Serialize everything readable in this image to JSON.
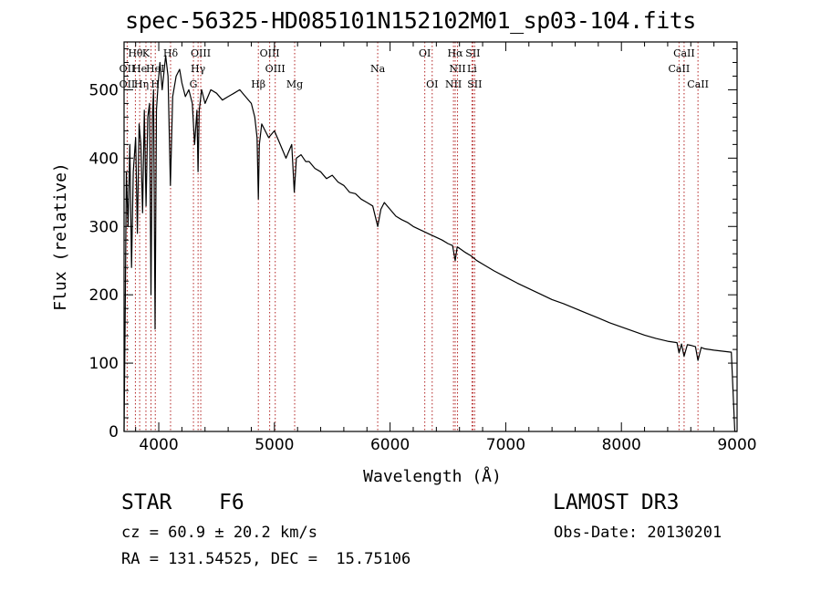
{
  "chart_data": {
    "type": "line",
    "title": "spec-56325-HD085101N152102M01_sp03-104.fits",
    "xlabel": "Wavelength (Å)",
    "ylabel": "Flux (relative)",
    "xlim": [
      3700,
      9000
    ],
    "ylim": [
      0,
      570
    ],
    "xticks": [
      4000,
      5000,
      6000,
      7000,
      8000,
      9000
    ],
    "yticks": [
      0,
      100,
      200,
      300,
      400,
      500
    ],
    "series": [
      {
        "name": "spectrum",
        "x": [
          3700,
          3710,
          3720,
          3735,
          3750,
          3765,
          3780,
          3800,
          3815,
          3830,
          3845,
          3860,
          3875,
          3890,
          3905,
          3920,
          3933,
          3945,
          3955,
          3968,
          3980,
          3995,
          4010,
          4030,
          4060,
          4080,
          4101,
          4120,
          4150,
          4180,
          4200,
          4230,
          4260,
          4290,
          4310,
          4330,
          4340,
          4350,
          4370,
          4400,
          4450,
          4500,
          4550,
          4600,
          4650,
          4700,
          4750,
          4800,
          4830,
          4850,
          4861,
          4870,
          4890,
          4920,
          4950,
          5000,
          5050,
          5100,
          5150,
          5172,
          5190,
          5230,
          5270,
          5300,
          5350,
          5400,
          5450,
          5500,
          5550,
          5600,
          5650,
          5700,
          5750,
          5800,
          5850,
          5893,
          5920,
          5950,
          6000,
          6050,
          6100,
          6150,
          6200,
          6250,
          6300,
          6350,
          6400,
          6450,
          6500,
          6540,
          6563,
          6580,
          6600,
          6650,
          6700,
          6750,
          6800,
          6900,
          7000,
          7100,
          7200,
          7300,
          7400,
          7500,
          7600,
          7700,
          7800,
          7900,
          8000,
          8100,
          8200,
          8300,
          8400,
          8480,
          8498,
          8520,
          8542,
          8570,
          8600,
          8640,
          8662,
          8690,
          8720,
          8760,
          8800,
          8850,
          8900,
          8950,
          8980,
          9000
        ],
        "y": [
          0,
          180,
          380,
          300,
          420,
          240,
          380,
          430,
          290,
          450,
          420,
          320,
          470,
          330,
          460,
          480,
          200,
          460,
          500,
          150,
          470,
          510,
          540,
          500,
          550,
          520,
          360,
          490,
          520,
          530,
          510,
          490,
          500,
          480,
          420,
          470,
          380,
          470,
          500,
          480,
          500,
          495,
          485,
          490,
          495,
          500,
          490,
          480,
          460,
          430,
          340,
          420,
          450,
          440,
          430,
          440,
          420,
          400,
          420,
          350,
          400,
          405,
          395,
          395,
          385,
          380,
          370,
          375,
          365,
          360,
          350,
          348,
          340,
          335,
          330,
          300,
          325,
          335,
          325,
          315,
          310,
          306,
          300,
          296,
          292,
          288,
          284,
          280,
          275,
          272,
          250,
          270,
          268,
          262,
          257,
          250,
          245,
          235,
          226,
          217,
          209,
          201,
          193,
          187,
          180,
          173,
          166,
          159,
          153,
          147,
          141,
          136,
          132,
          130,
          115,
          128,
          110,
          127,
          126,
          124,
          104,
          123,
          121,
          120,
          119,
          118,
          117,
          116,
          0,
          0
        ]
      }
    ],
    "line_labels_top": [
      {
        "wavelength": 3798,
        "label": "Hθ"
      },
      {
        "wavelength": 3889,
        "label": "K"
      },
      {
        "wavelength": 4102,
        "label": "Hδ"
      },
      {
        "wavelength": 4363,
        "label": "OIII"
      },
      {
        "wavelength": 4959,
        "label": "OIII"
      },
      {
        "wavelength": 6300,
        "label": "OI"
      },
      {
        "wavelength": 6563,
        "label": "Hα"
      },
      {
        "wavelength": 6716,
        "label": "SII"
      },
      {
        "wavelength": 8542,
        "label": "CaII"
      }
    ],
    "line_labels_mid": [
      {
        "wavelength": 3727,
        "label": "OII"
      },
      {
        "wavelength": 3835,
        "label": "He"
      },
      {
        "wavelength": 3970,
        "label": "HeI"
      },
      {
        "wavelength": 4340,
        "label": "Hγ"
      },
      {
        "wavelength": 5007,
        "label": "OIII"
      },
      {
        "wavelength": 5893,
        "label": "Na"
      },
      {
        "wavelength": 6583,
        "label": "NII"
      },
      {
        "wavelength": 6708,
        "label": "Li"
      },
      {
        "wavelength": 8498,
        "label": "CaII"
      }
    ],
    "line_labels_low": [
      {
        "wavelength": 3727,
        "label": "OII"
      },
      {
        "wavelength": 3850,
        "label": "Hη"
      },
      {
        "wavelength": 3970,
        "label": "H"
      },
      {
        "wavelength": 4300,
        "label": "G"
      },
      {
        "wavelength": 4861,
        "label": "Hβ"
      },
      {
        "wavelength": 5175,
        "label": "Mg"
      },
      {
        "wavelength": 6364,
        "label": "OI"
      },
      {
        "wavelength": 6548,
        "label": "NII"
      },
      {
        "wavelength": 6731,
        "label": "SII"
      },
      {
        "wavelength": 8662,
        "label": "CaII"
      }
    ],
    "marker_lines": [
      3727,
      3798,
      3835,
      3889,
      3933,
      3970,
      4102,
      4300,
      4340,
      4363,
      4861,
      4959,
      5007,
      5175,
      5893,
      6300,
      6364,
      6548,
      6563,
      6583,
      6708,
      6716,
      6731,
      8498,
      8542,
      8662
    ]
  },
  "info": {
    "object_class": "STAR",
    "subclass": "F6",
    "survey": "LAMOST DR3",
    "cz": "cz = 60.9 ± 20.2 km/s",
    "obs_date": "Obs-Date: 20130201",
    "coords": "RA = 131.54525, DEC =  15.75106"
  },
  "colors": {
    "marker_line": "#b22222",
    "spectrum": "#000000",
    "axes": "#000000"
  }
}
